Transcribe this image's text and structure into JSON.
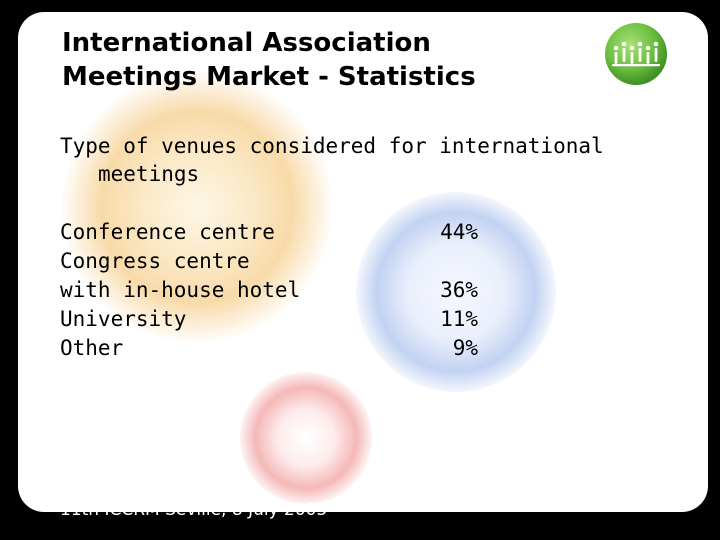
{
  "slide": {
    "title_line1": "International Association",
    "title_line2": "Meetings Market - Statistics",
    "subtitle_line1": "Type of venues considered for international",
    "subtitle_line2": "meetings",
    "venues": [
      "Conference centre",
      "Congress centre",
      "with in-house hotel",
      "University",
      "Other"
    ],
    "percentages": [
      "44%",
      "36%",
      "11%",
      "9%"
    ],
    "footer": "11th ICCRM Seville, 8 July 2005",
    "logo_icon": "people-group-logo-icon",
    "colors": {
      "background": "#000000",
      "slide": "#ffffff",
      "logo_green": "#6cbf3f",
      "blob_orange": "#f6ce8c",
      "blob_blue": "#aec3ee",
      "blob_red": "#f2a0a0"
    }
  }
}
